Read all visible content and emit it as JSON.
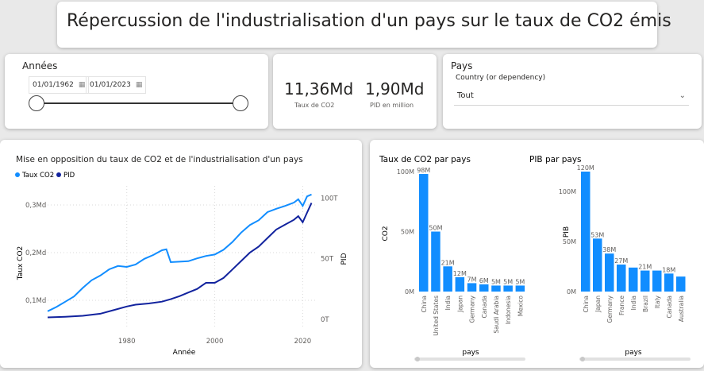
{
  "header": {
    "title": "Répercussion de l'industrialisation d'un pays sur le taux de CO2 émis"
  },
  "years": {
    "label": "Années",
    "start": "01/01/1962",
    "end": "01/01/2023"
  },
  "kpis": [
    {
      "value": "11,36Md",
      "label": "Taux de CO2"
    },
    {
      "value": "1,90Md",
      "label": "PID en million"
    }
  ],
  "country_filter": {
    "label": "Pays",
    "field": "Country (or dependency)",
    "selected": "Tout"
  },
  "colors": {
    "co2": "#118dff",
    "pid": "#12239e"
  },
  "chart_data": [
    {
      "type": "line",
      "title": "Mise en opposition du taux de CO2 et de l'industrialisation d'un pays",
      "xlabel": "Année",
      "ylabel": "Taux CO2",
      "y2label": "PID",
      "legend": [
        "Taux CO2",
        "PID"
      ],
      "legend_position": "top-left",
      "x_ticks": [
        "1980",
        "2000",
        "2020"
      ],
      "y_ticks": [
        "0,1Md",
        "0,2Md",
        "0,3Md"
      ],
      "y2_ticks": [
        "0T",
        "50T",
        "100T"
      ],
      "xlim": [
        1962,
        2023
      ],
      "ylim": [
        0.04,
        0.34
      ],
      "y2lim": [
        -8,
        110
      ],
      "series": [
        {
          "name": "Taux CO2",
          "axis": "left",
          "x": [
            1962,
            1964,
            1966,
            1968,
            1970,
            1972,
            1974,
            1976,
            1978,
            1980,
            1982,
            1984,
            1986,
            1988,
            1989,
            1990,
            1992,
            1994,
            1996,
            1998,
            2000,
            2002,
            2004,
            2006,
            2008,
            2010,
            2012,
            2014,
            2016,
            2018,
            2019,
            2020,
            2021,
            2022
          ],
          "y": [
            0.077,
            0.086,
            0.097,
            0.108,
            0.126,
            0.142,
            0.152,
            0.165,
            0.172,
            0.17,
            0.175,
            0.187,
            0.195,
            0.205,
            0.207,
            0.18,
            0.181,
            0.182,
            0.188,
            0.193,
            0.196,
            0.206,
            0.222,
            0.242,
            0.258,
            0.268,
            0.285,
            0.292,
            0.298,
            0.305,
            0.312,
            0.298,
            0.318,
            0.322
          ]
        },
        {
          "name": "PID",
          "axis": "right",
          "x": [
            1962,
            1966,
            1970,
            1974,
            1977,
            1980,
            1982,
            1985,
            1988,
            1990,
            1992,
            1994,
            1996,
            1998,
            2000,
            2002,
            2004,
            2006,
            2008,
            2010,
            2012,
            2014,
            2016,
            2018,
            2019,
            2020,
            2021,
            2022
          ],
          "y": [
            1.5,
            2.0,
            2.8,
            4.5,
            7.5,
            10.5,
            12.0,
            13.0,
            14.5,
            16.5,
            19.0,
            22.0,
            25.0,
            30.0,
            30.0,
            34.0,
            41.0,
            48.0,
            55.0,
            60.0,
            67.0,
            74.0,
            78.0,
            82.0,
            85.0,
            80.0,
            88.0,
            96.0
          ]
        }
      ]
    },
    {
      "type": "bar",
      "title": "Taux de CO2 par pays",
      "xlabel": "pays",
      "ylabel": "CO2",
      "y_ticks": [
        "0M",
        "50M",
        "100M"
      ],
      "ylim": [
        0,
        100
      ],
      "categories": [
        "China",
        "United States",
        "India",
        "Japan",
        "Germany",
        "Canada",
        "Saudi Arabia",
        "Indonesia",
        "Mexico"
      ],
      "values": [
        98,
        50,
        21,
        12,
        7,
        6,
        5,
        5,
        5
      ],
      "labels": [
        "98M",
        "50M",
        "21M",
        "12M",
        "7M",
        "6M",
        "5M",
        "5M",
        "5M"
      ]
    },
    {
      "type": "bar",
      "title": "PIB par pays",
      "xlabel": "pays",
      "ylabel": "PIB",
      "y_ticks": [
        "0M",
        "50M",
        "100M"
      ],
      "ylim": [
        0,
        120
      ],
      "categories": [
        "China",
        "Japan",
        "Germany",
        "France",
        "India",
        "Brazil",
        "Italy",
        "Canada",
        "Australia"
      ],
      "values": [
        120,
        53,
        38,
        27,
        24,
        21,
        21,
        18,
        15
      ],
      "labels": [
        "120M",
        "53M",
        "38M",
        "27M",
        "",
        "21M",
        "",
        "18M",
        ""
      ]
    }
  ]
}
